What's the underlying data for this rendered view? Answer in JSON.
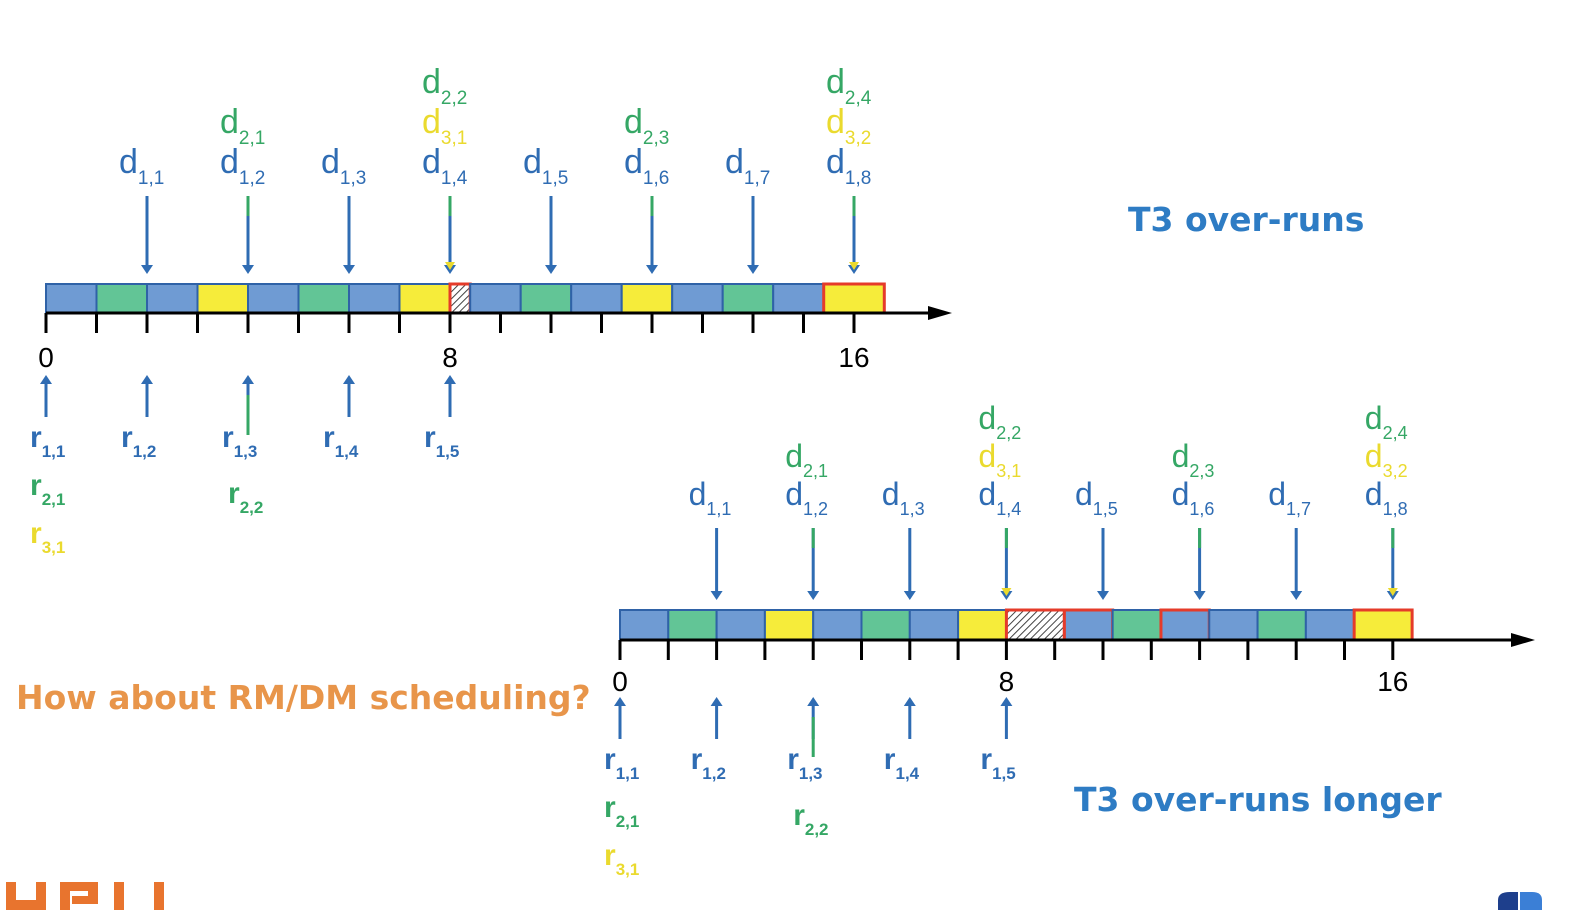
{
  "annotations": {
    "top_title": "T3 over-runs",
    "bottom_title": "T3 over-runs longer",
    "question": "How about RM/DM scheduling?"
  },
  "colors": {
    "t1": "#6f9bd3",
    "t2": "#62c596",
    "t3": "#f6ec3a",
    "slot_border": "#2f62a7",
    "overrun_border": "#e53b2a",
    "t1_text": "#2f6cb3",
    "t2_text": "#35a765",
    "t3_text": "#eada2e",
    "title": "#2e7cc4",
    "question": "#e8954a",
    "logo": "#e8742e",
    "axis": "#000000"
  },
  "icons": [
    "university-logo",
    "presentation-corner-icon"
  ],
  "diagrams": [
    {
      "id": "top",
      "ticks": [
        "0",
        "8",
        "16"
      ],
      "slots": [
        "t1",
        "t2",
        "t1",
        "t3",
        "t1",
        "t2",
        "t1",
        "t3",
        "overrun-hatched",
        "t1",
        "t2",
        "t1",
        "t3",
        "t1",
        "t2",
        "t1",
        "t3-overrun"
      ],
      "red_outlined_slots": [
        8,
        16
      ],
      "deadlines": [
        {
          "t": 2,
          "labels": [
            {
              "task": 1,
              "base": "d",
              "sub": "1,1"
            }
          ]
        },
        {
          "t": 4,
          "labels": [
            {
              "task": 2,
              "base": "d",
              "sub": "2,1"
            },
            {
              "task": 1,
              "base": "d",
              "sub": "1,2"
            }
          ]
        },
        {
          "t": 6,
          "labels": [
            {
              "task": 1,
              "base": "d",
              "sub": "1,3"
            }
          ]
        },
        {
          "t": 8,
          "labels": [
            {
              "task": 2,
              "base": "d",
              "sub": "2,2"
            },
            {
              "task": 3,
              "base": "d",
              "sub": "3,1"
            },
            {
              "task": 1,
              "base": "d",
              "sub": "1,4"
            }
          ]
        },
        {
          "t": 10,
          "labels": [
            {
              "task": 1,
              "base": "d",
              "sub": "1,5"
            }
          ]
        },
        {
          "t": 12,
          "labels": [
            {
              "task": 2,
              "base": "d",
              "sub": "2,3"
            },
            {
              "task": 1,
              "base": "d",
              "sub": "1,6"
            }
          ]
        },
        {
          "t": 14,
          "labels": [
            {
              "task": 1,
              "base": "d",
              "sub": "1,7"
            }
          ]
        },
        {
          "t": 16,
          "labels": [
            {
              "task": 2,
              "base": "d",
              "sub": "2,4"
            },
            {
              "task": 3,
              "base": "d",
              "sub": "3,2"
            },
            {
              "task": 1,
              "base": "d",
              "sub": "1,8"
            }
          ]
        }
      ],
      "releases": [
        {
          "t": 0,
          "labels": [
            {
              "task": 1,
              "base": "r",
              "sub": "1,1"
            },
            {
              "task": 2,
              "base": "r",
              "sub": "2,1"
            },
            {
              "task": 3,
              "base": "r",
              "sub": "3,1"
            }
          ]
        },
        {
          "t": 2,
          "labels": [
            {
              "task": 1,
              "base": "r",
              "sub": "1,2"
            }
          ]
        },
        {
          "t": 4,
          "labels": [
            {
              "task": 1,
              "base": "r",
              "sub": "1,3"
            },
            {
              "task": 2,
              "base": "r",
              "sub": "2,2"
            }
          ]
        },
        {
          "t": 6,
          "labels": [
            {
              "task": 1,
              "base": "r",
              "sub": "1,4"
            }
          ]
        },
        {
          "t": 8,
          "labels": [
            {
              "task": 1,
              "base": "r",
              "sub": "1,5"
            }
          ]
        }
      ]
    },
    {
      "id": "bottom",
      "ticks": [
        "0",
        "8",
        "16"
      ],
      "slots": [
        "t1",
        "t2",
        "t1",
        "t3",
        "t1",
        "t2",
        "t1",
        "t3",
        "overrun-hatched",
        "t1-red",
        "t2",
        "t1-red",
        "t1",
        "t2",
        "t1",
        "t3-overrun"
      ],
      "red_outlined_slots": [
        8,
        9,
        11,
        15
      ],
      "deadlines": [
        {
          "t": 2,
          "labels": [
            {
              "task": 1,
              "base": "d",
              "sub": "1,1"
            }
          ]
        },
        {
          "t": 4,
          "labels": [
            {
              "task": 2,
              "base": "d",
              "sub": "2,1"
            },
            {
              "task": 1,
              "base": "d",
              "sub": "1,2"
            }
          ]
        },
        {
          "t": 6,
          "labels": [
            {
              "task": 1,
              "base": "d",
              "sub": "1,3"
            }
          ]
        },
        {
          "t": 8,
          "labels": [
            {
              "task": 2,
              "base": "d",
              "sub": "2,2"
            },
            {
              "task": 3,
              "base": "d",
              "sub": "3,1"
            },
            {
              "task": 1,
              "base": "d",
              "sub": "1,4"
            }
          ]
        },
        {
          "t": 10,
          "labels": [
            {
              "task": 1,
              "base": "d",
              "sub": "1,5"
            }
          ]
        },
        {
          "t": 12,
          "labels": [
            {
              "task": 2,
              "base": "d",
              "sub": "2,3"
            },
            {
              "task": 1,
              "base": "d",
              "sub": "1,6"
            }
          ]
        },
        {
          "t": 14,
          "labels": [
            {
              "task": 1,
              "base": "d",
              "sub": "1,7"
            }
          ]
        },
        {
          "t": 16,
          "labels": [
            {
              "task": 2,
              "base": "d",
              "sub": "2,4"
            },
            {
              "task": 3,
              "base": "d",
              "sub": "3,2"
            },
            {
              "task": 1,
              "base": "d",
              "sub": "1,8"
            }
          ]
        }
      ],
      "releases": [
        {
          "t": 0,
          "labels": [
            {
              "task": 1,
              "base": "r",
              "sub": "1,1"
            },
            {
              "task": 2,
              "base": "r",
              "sub": "2,1"
            },
            {
              "task": 3,
              "base": "r",
              "sub": "3,1"
            }
          ]
        },
        {
          "t": 2,
          "labels": [
            {
              "task": 1,
              "base": "r",
              "sub": "1,2"
            }
          ]
        },
        {
          "t": 4,
          "labels": [
            {
              "task": 1,
              "base": "r",
              "sub": "1,3"
            },
            {
              "task": 2,
              "base": "r",
              "sub": "2,2"
            }
          ]
        },
        {
          "t": 6,
          "labels": [
            {
              "task": 1,
              "base": "r",
              "sub": "1,4"
            }
          ]
        },
        {
          "t": 8,
          "labels": [
            {
              "task": 1,
              "base": "r",
              "sub": "1,5"
            }
          ]
        }
      ]
    }
  ]
}
